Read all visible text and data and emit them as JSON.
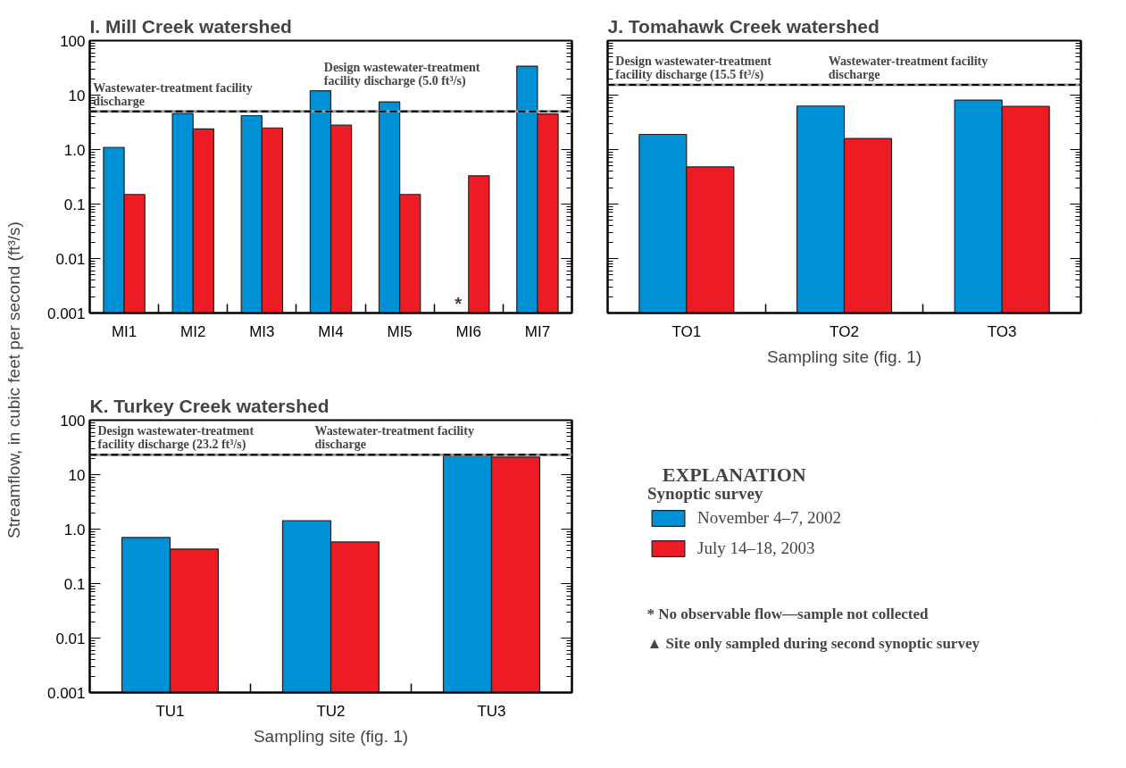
{
  "chart_data": [
    {
      "type": "bar",
      "title": "I. Mill Creek watershed",
      "ylabel": "Streamflow, in cubic feet per second (ft³/s)",
      "log": true,
      "grid": false,
      "categories": [
        "MI1",
        "MI2",
        "MI3",
        "MI4",
        "MI5",
        "MI6",
        "MI7"
      ],
      "series": [
        {
          "color": "#0090d6",
          "values": [
            1.1,
            4.6,
            4.2,
            12,
            7.5,
            null,
            34
          ]
        },
        {
          "color": "#ed1c24",
          "values": [
            0.15,
            2.4,
            2.5,
            2.8,
            0.15,
            0.33,
            4.5
          ]
        }
      ],
      "ylim": [
        0.001,
        100
      ],
      "yticks": [
        {
          "value": 0.001,
          "label": "0.001"
        },
        {
          "value": 0.01,
          "label": "0.01"
        },
        {
          "value": 0.1,
          "label": "0.1"
        },
        {
          "value": 1,
          "label": "1.0"
        },
        {
          "value": 10,
          "label": "10"
        },
        {
          "value": 100,
          "label": "100"
        }
      ],
      "ref_lines": [
        {
          "axis": "y",
          "value": 5.0,
          "label": "Wastewater-treatment facility discharge",
          "line_style": "solid",
          "color": "#9a9a9a"
        },
        {
          "axis": "y",
          "value": 5.0,
          "label": "Design wastewater-treatment facility discharge (5.0 ft³/s)",
          "line_style": "dashed",
          "color": "#000000"
        }
      ],
      "annotations": [
        {
          "text": "*",
          "x": "MI6",
          "y": 0.0015
        }
      ]
    },
    {
      "type": "bar",
      "title": "J. Tomahawk Creek watershed",
      "xlabel": "Sampling site (fig. 1)",
      "log": true,
      "grid": false,
      "tick_labels": "x",
      "categories": [
        "TO1",
        "TO2",
        "TO3"
      ],
      "series": [
        {
          "color": "#0090d6",
          "values": [
            1.9,
            6.3,
            8.1
          ]
        },
        {
          "color": "#ed1c24",
          "values": [
            0.48,
            1.6,
            6.2
          ]
        }
      ],
      "ylim": [
        0.001,
        100
      ],
      "yticks": [
        {
          "value": 0.001,
          "label": null
        },
        {
          "value": 0.01,
          "label": null
        },
        {
          "value": 0.1,
          "label": null
        },
        {
          "value": 1,
          "label": null
        },
        {
          "value": 10,
          "label": null
        },
        {
          "value": 100,
          "label": null
        }
      ],
      "ref_lines": [
        {
          "axis": "y",
          "value": 15.5,
          "label": "Design wastewater-treatment facility discharge (15.5 ft³/s)",
          "line_style": "dashed",
          "color": "#000000"
        },
        {
          "axis": "y",
          "value": 15.5,
          "label": "Wastewater-treatment facility discharge",
          "line_style": "solid",
          "color": "#9a9a9a"
        }
      ]
    },
    {
      "type": "bar",
      "title": "K. Turkey Creek watershed",
      "xlabel": "Sampling site (fig. 1)",
      "log": true,
      "grid": false,
      "legend": "right",
      "legend_title": "Synoptic survey",
      "categories": [
        "TU1",
        "TU2",
        "TU3"
      ],
      "series": [
        {
          "name": "November 4–7, 2002",
          "color": "#0090d6",
          "values": [
            0.7,
            1.43,
            22.4
          ]
        },
        {
          "name": "July 14–18, 2003",
          "color": "#ed1c24",
          "values": [
            0.43,
            0.58,
            21
          ]
        }
      ],
      "ylim": [
        0.001,
        100
      ],
      "yticks": [
        {
          "value": 0.001,
          "label": "0.001"
        },
        {
          "value": 0.01,
          "label": "0.01"
        },
        {
          "value": 0.1,
          "label": "0.1"
        },
        {
          "value": 1,
          "label": "1.0"
        },
        {
          "value": 10,
          "label": "10"
        },
        {
          "value": 100,
          "label": "100"
        }
      ],
      "ref_lines": [
        {
          "axis": "y",
          "value": 23.2,
          "label": "Design wastewater-treatment facility discharge (23.2 ft³/s)",
          "line_style": "dashed",
          "color": "#000000"
        },
        {
          "axis": "y",
          "value": 23.2,
          "label": "Wastewater-treatment facility discharge",
          "line_style": "solid",
          "color": "#9a9a9a"
        }
      ],
      "annotations": [
        "EXPLANATION",
        "* No observable flow—sample not collected",
        "▲ Site only sampled during second synoptic survey"
      ]
    }
  ]
}
